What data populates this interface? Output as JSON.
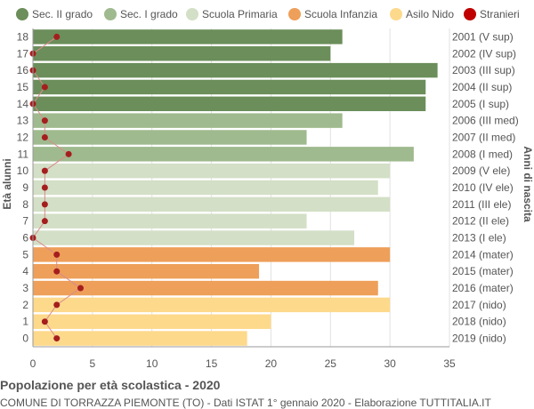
{
  "chart_data": {
    "type": "bar",
    "orientation": "horizontal",
    "legend": {
      "placement": "top",
      "items": [
        {
          "key": "sec2",
          "label": "Sec. II grado",
          "color": "#6b8e5a"
        },
        {
          "key": "sec1",
          "label": "Sec. I grado",
          "color": "#9fba8e"
        },
        {
          "key": "primaria",
          "label": "Scuola Primaria",
          "color": "#d3dfc6"
        },
        {
          "key": "infanzia",
          "label": "Scuola Infanzia",
          "color": "#ee9f59"
        },
        {
          "key": "nido",
          "label": "Asilo Nido",
          "color": "#fdd98c"
        },
        {
          "key": "stranieri",
          "label": "Stranieri",
          "color": "#c00000"
        }
      ]
    },
    "ylabel": "Età alunni",
    "ylabel_right": "Anni di nascita",
    "xlim": [
      0,
      35
    ],
    "xticks": [
      0,
      5,
      10,
      15,
      20,
      25,
      30,
      35
    ],
    "grid": true,
    "ages": [
      18,
      17,
      16,
      15,
      14,
      13,
      12,
      11,
      10,
      9,
      8,
      7,
      6,
      5,
      4,
      3,
      2,
      1,
      0
    ],
    "birth_years": [
      "2001 (V sup)",
      "2002 (IV sup)",
      "2003 (III sup)",
      "2004 (II sup)",
      "2005 (I sup)",
      "2006 (III med)",
      "2007 (II med)",
      "2008 (I med)",
      "2009 (V ele)",
      "2010 (IV ele)",
      "2011 (III ele)",
      "2012 (II ele)",
      "2013 (I ele)",
      "2014 (mater)",
      "2015 (mater)",
      "2016 (mater)",
      "2017 (nido)",
      "2018 (nido)",
      "2019 (nido)"
    ],
    "categories_by_row": [
      "sec2",
      "sec2",
      "sec2",
      "sec2",
      "sec2",
      "sec1",
      "sec1",
      "sec1",
      "primaria",
      "primaria",
      "primaria",
      "primaria",
      "primaria",
      "infanzia",
      "infanzia",
      "infanzia",
      "nido",
      "nido",
      "nido"
    ],
    "students": [
      26,
      25,
      34,
      33,
      33,
      26,
      23,
      32,
      30,
      29,
      30,
      23,
      27,
      30,
      19,
      29,
      30,
      20,
      18
    ],
    "stranieri": [
      2,
      0,
      0,
      1,
      0,
      1,
      1,
      3,
      1,
      1,
      1,
      1,
      0,
      2,
      2,
      4,
      2,
      1,
      2
    ]
  },
  "footer": {
    "title": "Popolazione per età scolastica - 2020",
    "subtitle": "COMUNE DI TORRAZZA PIEMONTE (TO) - Dati ISTAT 1° gennaio 2020 - Elaborazione TUTTITALIA.IT"
  },
  "colors": {
    "grid": "#e2e2e2",
    "axis": "#999999",
    "stranieri_line": "#d98c8c",
    "stranieri_dot": "#a51e1e"
  }
}
